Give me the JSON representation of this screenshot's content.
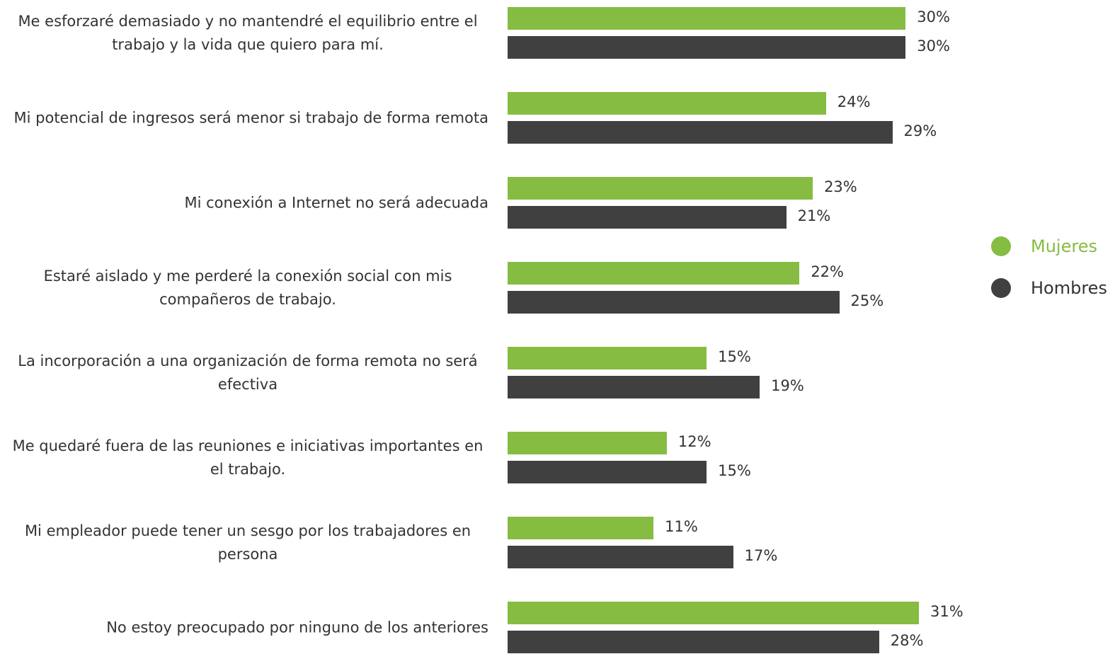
{
  "chart_data": {
    "type": "bar",
    "orientation": "horizontal",
    "categories": [
      "Me esforzaré demasiado y no mantendré el equilibrio entre el trabajo y la vida que quiero para mí.",
      "Mi potencial de ingresos será menor si trabajo de forma remota",
      "Mi conexión a Internet no será adecuada",
      "Estaré aislado y me perderé la conexión social con mis compañeros de trabajo.",
      "La incorporación a una organización de forma remota no será efectiva",
      "Me quedaré fuera de las reuniones e iniciativas importantes en el trabajo.",
      "Mi empleador puede tener un sesgo por los trabajadores en persona",
      "No estoy preocupado por ninguno de los anteriores"
    ],
    "series": [
      {
        "name": "Mujeres",
        "color": "#86bc42",
        "values": [
          30,
          24,
          23,
          22,
          15,
          12,
          11,
          31
        ],
        "value_labels": [
          "30%",
          "24%",
          "23%",
          "22%",
          "15%",
          "12%",
          "11%",
          "31%"
        ]
      },
      {
        "name": "Hombres",
        "color": "#404040",
        "values": [
          30,
          29,
          21,
          25,
          19,
          15,
          17,
          28
        ],
        "value_labels": [
          "30%",
          "29%",
          "21%",
          "25%",
          "19%",
          "15%",
          "17%",
          "28%"
        ]
      }
    ],
    "legend": "right"
  }
}
